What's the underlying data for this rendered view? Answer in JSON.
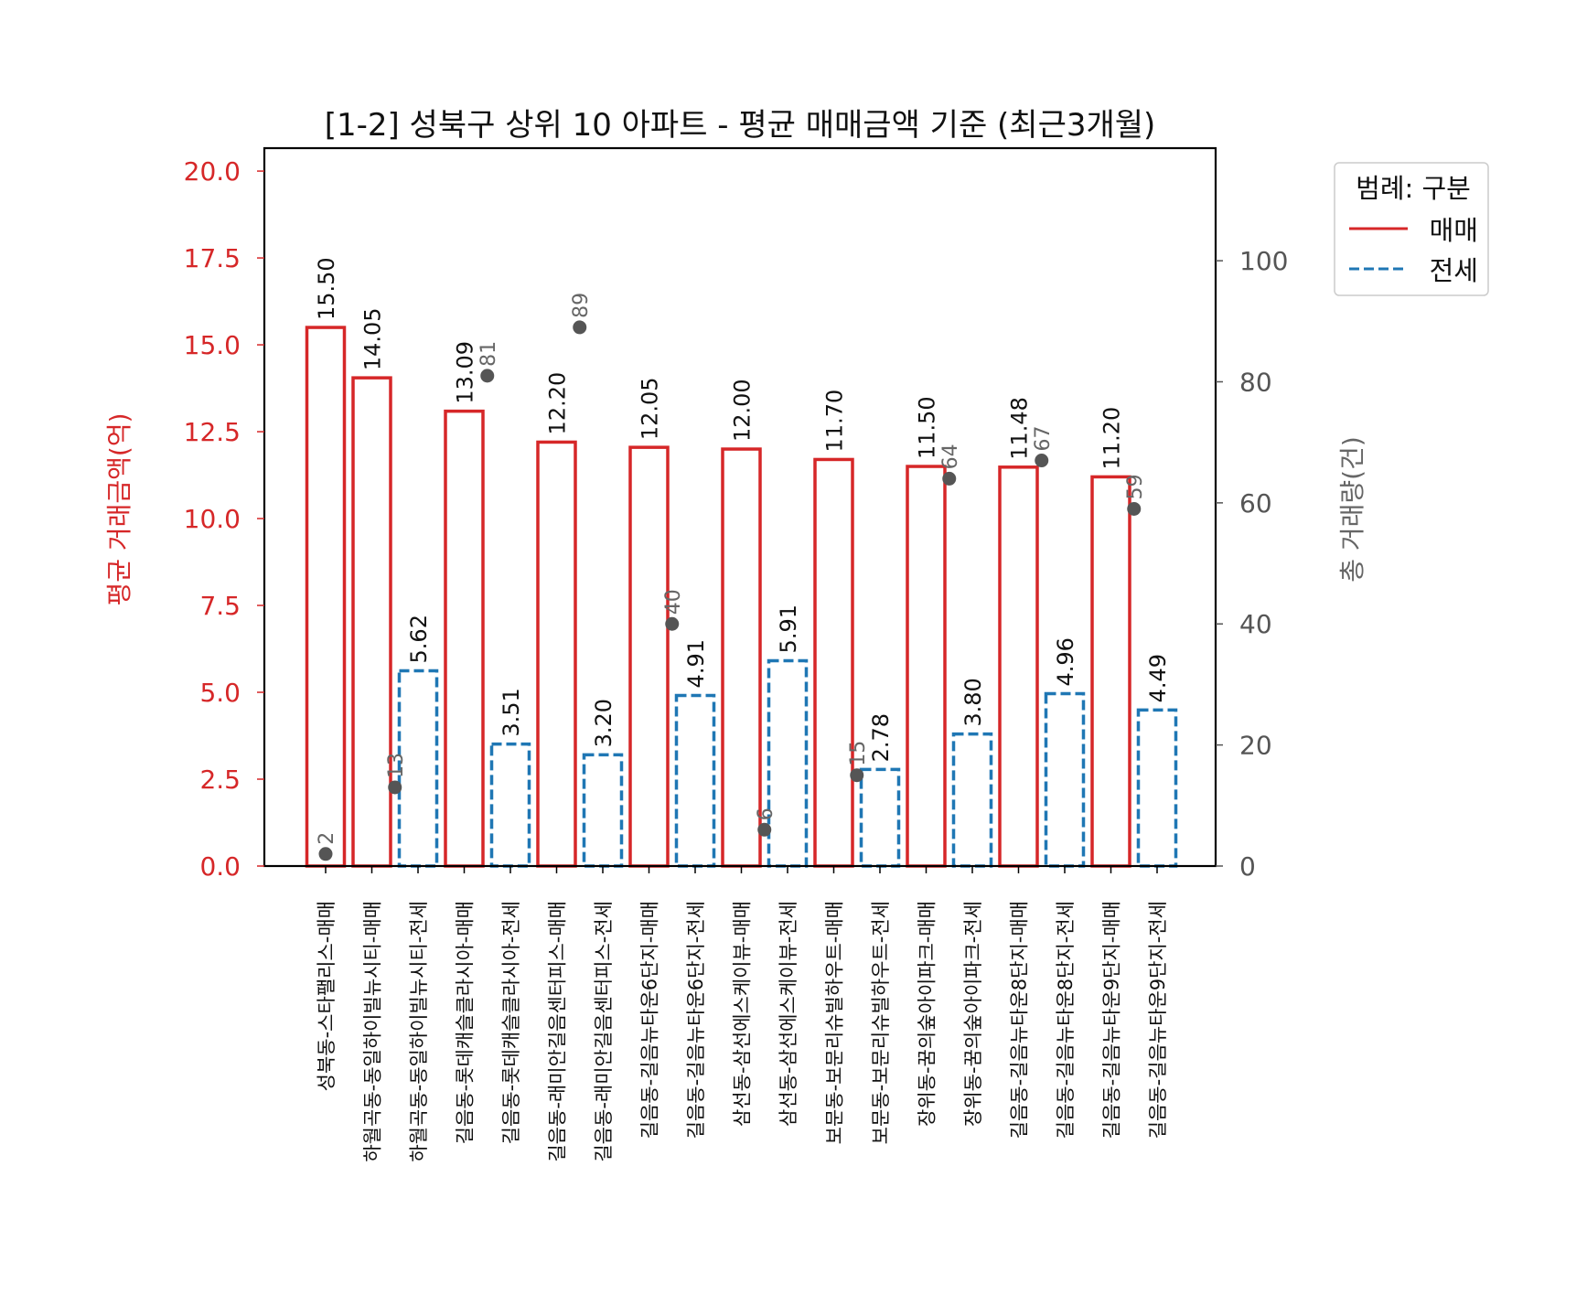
{
  "chart_data": {
    "type": "bar",
    "title": "[1-2] 성북구 상위 10 아파트 - 평균 매매금액 기준 (최근3개월)",
    "xlabel": "",
    "ylabel": "평균 거래금액(억)",
    "ylabel_right": "총 거래량(건)",
    "ylim": [
      0,
      20.66
    ],
    "ylim_right": [
      0,
      118.6
    ],
    "yticks": [
      "0.0",
      "2.5",
      "5.0",
      "7.5",
      "10.0",
      "12.5",
      "15.0",
      "17.5",
      "20.0"
    ],
    "yticks_right": [
      "0",
      "20",
      "40",
      "60",
      "80",
      "100"
    ],
    "legend": {
      "title": "범례: 구분",
      "position": "upper right outside",
      "entries": [
        {
          "label": "매매",
          "color": "#d62728",
          "style": "solid"
        },
        {
          "label": "전세",
          "color": "#1f77b4",
          "style": "dashed"
        }
      ]
    },
    "categories": [
      "성북동-스타팰리스-매매",
      "하월곡동-동일하이빌뉴시티-매매",
      "하월곡동-동일하이빌뉴시티-전세",
      "길음동-롯데캐슬클라시아-매매",
      "길음동-롯데캐슬클라시아-전세",
      "길음동-래미안길음센터피스-매매",
      "길음동-래미안길음센터피스-전세",
      "길음동-길음뉴타운6단지-매매",
      "길음동-길음뉴타운6단지-전세",
      "삼선동-삼선에스케이뷰-매매",
      "삼선동-삼선에스케이뷰-전세",
      "보문동-보문리슈빌하우트-매매",
      "보문동-보문리슈빌하우트-전세",
      "장위동-꿈의숲아이파크-매매",
      "장위동-꿈의숲아이파크-전세",
      "길음동-길음뉴타운8단지-매매",
      "길음동-길음뉴타운8단지-전세",
      "길음동-길음뉴타운9단지-매매",
      "길음동-길음뉴타운9단지-전세"
    ],
    "series": [
      {
        "name": "평균 거래금액(억)",
        "axis": "left",
        "types": [
          "매매",
          "매매",
          "전세",
          "매매",
          "전세",
          "매매",
          "전세",
          "매매",
          "전세",
          "매매",
          "전세",
          "매매",
          "전세",
          "매매",
          "전세",
          "매매",
          "전세",
          "매매",
          "전세"
        ],
        "values": [
          15.5,
          14.05,
          5.62,
          13.09,
          3.51,
          12.2,
          3.2,
          12.05,
          4.91,
          12.0,
          5.91,
          11.7,
          2.78,
          11.5,
          3.8,
          11.48,
          4.96,
          11.2,
          4.49
        ],
        "labels": [
          "15.50",
          "14.05",
          "5.62",
          "13.09",
          "3.51",
          "12.20",
          "3.20",
          "12.05",
          "4.91",
          "12.00",
          "5.91",
          "11.70",
          "2.78",
          "11.50",
          "3.80",
          "11.48",
          "4.96",
          "11.20",
          "4.49"
        ]
      },
      {
        "name": "총 거래량(건)",
        "axis": "right",
        "type": "scatter",
        "complexes": [
          "성북동-스타팰리스",
          "하월곡동-동일하이빌뉴시티",
          "길음동-롯데캐슬클라시아",
          "길음동-래미안길음센터피스",
          "길음동-길음뉴타운6단지",
          "삼선동-삼선에스케이뷰",
          "보문동-보문리슈빌하우트",
          "장위동-꿈의숲아이파크",
          "길음동-길음뉴타운8단지",
          "길음동-길음뉴타운9단지"
        ],
        "positions": [
          0,
          1.5,
          3.5,
          5.5,
          7.5,
          9.5,
          11.5,
          13.5,
          15.5,
          17.5
        ],
        "values": [
          2,
          13,
          81,
          89,
          40,
          6,
          15,
          64,
          67,
          59
        ],
        "labels": [
          "2",
          "13",
          "81",
          "89",
          "40",
          "6",
          "15",
          "64",
          "67",
          "59"
        ]
      }
    ],
    "colors": {
      "sale": "#d62728",
      "jeonse": "#1f77b4",
      "count_dot": "#555555"
    },
    "grid": false
  }
}
